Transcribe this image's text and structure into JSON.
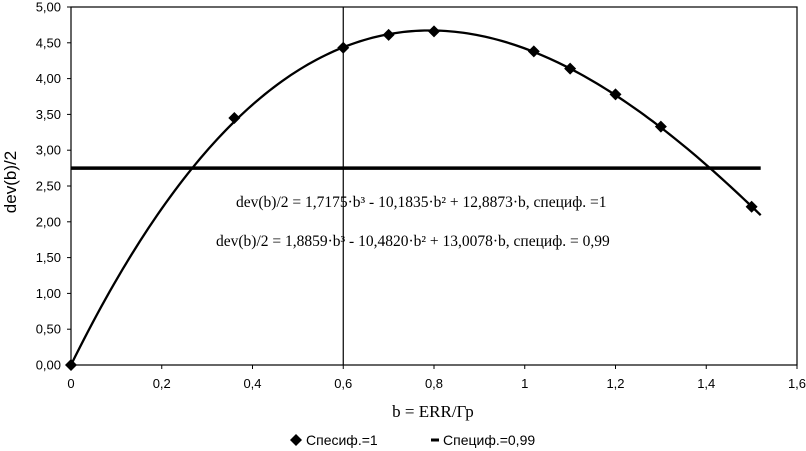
{
  "chart_data": {
    "type": "scatter",
    "xlabel": "b = ERR/Гр",
    "ylabel": "dev(b)/2",
    "xlim": [
      0,
      1.6
    ],
    "ylim": [
      0,
      5.0
    ],
    "x_ticks": [
      "0",
      "0,2",
      "0,4",
      "0,6",
      "0,8",
      "1",
      "1,2",
      "1,4",
      "1,6"
    ],
    "y_ticks": [
      "0,00",
      "0,50",
      "1,00",
      "1,50",
      "2,00",
      "2,50",
      "3,00",
      "3,50",
      "4,00",
      "4,50",
      "5,00"
    ],
    "grid": {
      "major_vertical": [
        0.6
      ],
      "horizontal": false
    },
    "legend_position": "bottom",
    "series": [
      {
        "name": "Спесиф.=1",
        "marker": "diamond",
        "color": "#000000",
        "x": [
          0,
          0.36,
          0.6,
          0.7,
          0.8,
          1.02,
          1.1,
          1.2,
          1.3,
          1.5
        ],
        "y": [
          0.0,
          3.45,
          4.43,
          4.61,
          4.66,
          4.38,
          4.14,
          3.78,
          3.33,
          2.21
        ]
      },
      {
        "name": "Специф.=0,99",
        "marker": "line",
        "color": "#000000",
        "x": [
          0,
          1.52
        ],
        "y": [
          2.75,
          2.75
        ]
      }
    ],
    "trendline": {
      "type": "polynomial",
      "coefficients": {
        "b3": 1.7175,
        "b2": -10.1835,
        "b1": 12.8873
      },
      "x_range": [
        0,
        1.52
      ]
    },
    "annotations": [
      "dev(b)/2 = 1,7175·b³ - 10,1835·b² + 12,8873·b, специф. =1",
      "dev(b)/2 = 1,8859·b³ - 10,4820·b² + 13,0078·b, специф. = 0,99"
    ]
  }
}
